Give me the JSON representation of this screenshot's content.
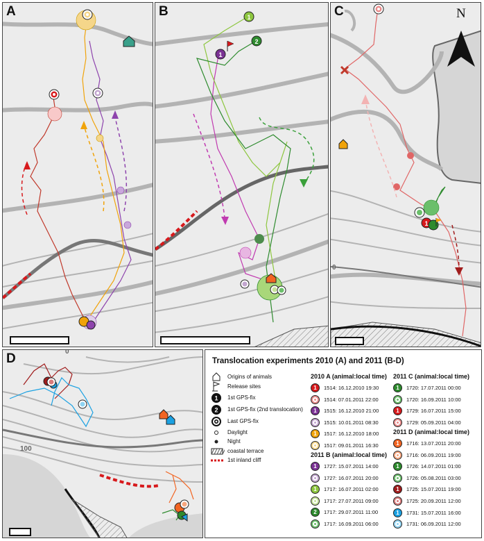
{
  "panels": {
    "a": {
      "label": "A"
    },
    "b": {
      "label": "B"
    },
    "c": {
      "label": "C",
      "north": "N",
      "contour_tick": "0"
    },
    "d": {
      "label": "D",
      "contour_tick": "100",
      "contour_tick_top": "0"
    }
  },
  "legend": {
    "title": "Translocation experiments 2010 (A) and 2011 (B-D)",
    "symbols": [
      {
        "icon": "pentagon-icon",
        "label": "Origins of animals"
      },
      {
        "icon": "flag-icon",
        "label": "Release sites"
      },
      {
        "icon": "black-circle-1-icon",
        "label": "1st GPS-fix",
        "num": "1"
      },
      {
        "icon": "black-circle-2-icon",
        "label": "1st GPS-fix (2nd translocation)",
        "num": "2"
      },
      {
        "icon": "target-icon",
        "label": "Last GPS-fix"
      },
      {
        "icon": "open-dot-icon",
        "label": "Daylight"
      },
      {
        "icon": "filled-dot-icon",
        "label": "Night"
      },
      {
        "icon": "hatch-icon",
        "label": "coastal terrace"
      },
      {
        "icon": "dashed-red-line-icon",
        "label": "1st inland cliff"
      }
    ],
    "sections": {
      "a2010": {
        "heading": "2010 A (animal:local time)",
        "rows": [
          {
            "kind": "first",
            "num": "1",
            "color": "#d7191c",
            "text": "1514: 16.12.2010 19:30"
          },
          {
            "kind": "last",
            "num": "",
            "color": "#e98b8b",
            "text": "1514: 07.01.2011 22:00"
          },
          {
            "kind": "first",
            "num": "1",
            "color": "#7b3294",
            "text": "1515: 16.12.2010 21:00"
          },
          {
            "kind": "last",
            "num": "",
            "color": "#c2a5cf",
            "text": "1515: 10.01.2011 08:30"
          },
          {
            "kind": "first",
            "num": "1",
            "color": "#f0a30a",
            "text": "1517: 16.12.2010 18:00"
          },
          {
            "kind": "last",
            "num": "",
            "color": "#f5d68a",
            "text": "1517: 09.01.2011 16:30"
          }
        ]
      },
      "b2011": {
        "heading": "2011 B (animal:local time)",
        "rows": [
          {
            "kind": "first",
            "num": "1",
            "color": "#7b3294",
            "text": "1727: 15.07.2011 14:00"
          },
          {
            "kind": "last",
            "num": "",
            "color": "#c2a5cf",
            "text": "1727: 16.07.2011 20:00"
          },
          {
            "kind": "first",
            "num": "1",
            "color": "#8dc63f",
            "text": "1717: 16.07.2011 02:00"
          },
          {
            "kind": "last",
            "num": "",
            "color": "#c7e49a",
            "text": "1717: 27.07.2011 09:00"
          },
          {
            "kind": "first",
            "num": "2",
            "color": "#2e8b2e",
            "text": "1717: 29.07.2011 11:00"
          },
          {
            "kind": "last",
            "num": "",
            "color": "#6bbf6b",
            "text": "1717: 16.09.2011 06:00"
          }
        ]
      },
      "c2011": {
        "heading": "2011 C (animal:local time)",
        "rows": [
          {
            "kind": "first",
            "num": "1",
            "color": "#2e8b2e",
            "text": "1720: 17.07.2011 00:00"
          },
          {
            "kind": "last",
            "num": "",
            "color": "#6bbf6b",
            "text": "1720: 16.09.2011 10:00"
          },
          {
            "kind": "first",
            "num": "1",
            "color": "#d7191c",
            "text": "1729: 16.07.2011 15:00"
          },
          {
            "kind": "last",
            "num": "",
            "color": "#e98b8b",
            "text": "1729: 05.09.2011 04:00"
          }
        ]
      },
      "d2011": {
        "heading": "2011 D (animal:local time)",
        "rows": [
          {
            "kind": "first",
            "num": "1",
            "color": "#f26522",
            "text": "1716: 13.07.2011 20:00"
          },
          {
            "kind": "last",
            "num": "",
            "color": "#f7a77f",
            "text": "1716: 06.09.2011 19:00"
          },
          {
            "kind": "first",
            "num": "1",
            "color": "#2e8b2e",
            "text": "1726: 14.07.2011 01:00"
          },
          {
            "kind": "last",
            "num": "",
            "color": "#6bbf6b",
            "text": "1726: 05.08.2011 03:00"
          },
          {
            "kind": "first",
            "num": "1",
            "color": "#a01c1c",
            "text": "1725: 15.07.2011 19:00"
          },
          {
            "kind": "last",
            "num": "",
            "color": "#d97a7a",
            "text": "1725: 20.09.2011 12:00"
          },
          {
            "kind": "first",
            "num": "1",
            "color": "#1ba1e2",
            "text": "1731: 15.07.2011 16:00"
          },
          {
            "kind": "last",
            "num": "",
            "color": "#8fd3f2",
            "text": "1731: 06.09.2011 12:00"
          }
        ]
      }
    }
  },
  "colors": {
    "contour": "#b3b3b3",
    "cliff": "#d7191c",
    "terrace_line": "#111111",
    "origin_teal": "#3aa08a",
    "origin_orange": "#f0a30a"
  }
}
